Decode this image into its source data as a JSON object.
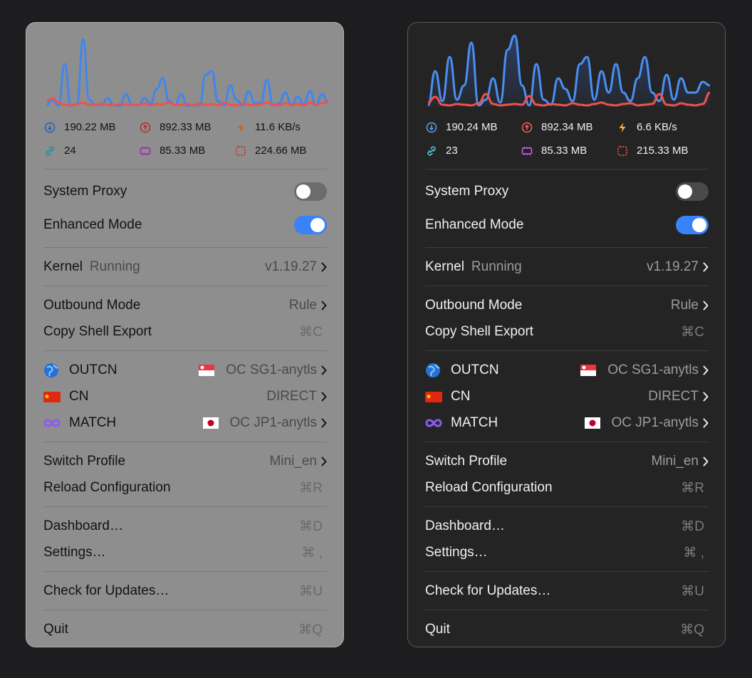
{
  "panels": [
    {
      "background": "#8e8e8e",
      "border": "#b4b4b4",
      "text_color": "#121212",
      "secondary_color": "#4a4a4a",
      "shortcut_color": "#6a6a6a",
      "separator_color": "#7a7a7a",
      "toggle_off_color": "#6c6c6c",
      "traffic": [
        "190.22 MB",
        "892.33 MB",
        "11.6 KB/s",
        "24",
        "85.33 MB",
        "224.66 MB"
      ],
      "toggles": [
        {
          "label": "System Proxy",
          "on": false
        },
        {
          "label": "Enhanced Mode",
          "on": true
        }
      ],
      "kernel": {
        "label": "Kernel",
        "status": "Running",
        "version": "v1.19.27"
      },
      "sections": [
        [
          {
            "label": "Outbound Mode",
            "value": "Rule"
          },
          {
            "label": "Copy Shell Export",
            "shortcut": "⌘C"
          }
        ],
        [
          {
            "label": "OUTCN",
            "value": "OC SG1-anytls"
          },
          {
            "label": "CN",
            "value": "DIRECT"
          },
          {
            "label": "MATCH",
            "value": "OC JP1-anytls"
          }
        ],
        [
          {
            "label": "Switch Profile",
            "value": "Mini_en"
          },
          {
            "label": "Reload Configuration",
            "shortcut": "⌘R"
          }
        ],
        [
          {
            "label": "Dashboard…",
            "shortcut": "⌘D"
          },
          {
            "label": "Settings…",
            "shortcut": "⌘ ,"
          }
        ],
        [
          {
            "label": "Check for Updates…",
            "shortcut": "⌘U"
          }
        ],
        [
          {
            "label": "Quit",
            "shortcut": "⌘Q"
          }
        ]
      ]
    },
    {
      "background": "#242424",
      "border": "#5a5a5a",
      "text_color": "#f0f0f0",
      "secondary_color": "#9c9c9c",
      "shortcut_color": "#7c7c7c",
      "separator_color": "#3e3e3e",
      "toggle_off_color": "#4a4a4a",
      "traffic": [
        "190.24 MB",
        "892.34 MB",
        "6.6 KB/s",
        "23",
        "85.33 MB",
        "215.33 MB"
      ],
      "toggles": [
        {
          "label": "System Proxy",
          "on": false
        },
        {
          "label": "Enhanced Mode",
          "on": true
        }
      ],
      "kernel": {
        "label": "Kernel",
        "status": "Running",
        "version": "v1.19.27"
      },
      "sections": [
        [
          {
            "label": "Outbound Mode",
            "value": "Rule"
          },
          {
            "label": "Copy Shell Export",
            "shortcut": "⌘C"
          }
        ],
        [
          {
            "label": "OUTCN",
            "value": "OC SG1-anytls"
          },
          {
            "label": "CN",
            "value": "DIRECT"
          },
          {
            "label": "MATCH",
            "value": "OC JP1-anytls"
          }
        ],
        [
          {
            "label": "Switch Profile",
            "value": "Mini_en"
          },
          {
            "label": "Reload Configuration",
            "shortcut": "⌘R"
          }
        ],
        [
          {
            "label": "Dashboard…",
            "shortcut": "⌘D"
          },
          {
            "label": "Settings…",
            "shortcut": "⌘ ,"
          }
        ],
        [
          {
            "label": "Check for Updates…",
            "shortcut": "⌘U"
          }
        ],
        [
          {
            "label": "Quit",
            "shortcut": "⌘Q"
          }
        ]
      ]
    }
  ]
}
